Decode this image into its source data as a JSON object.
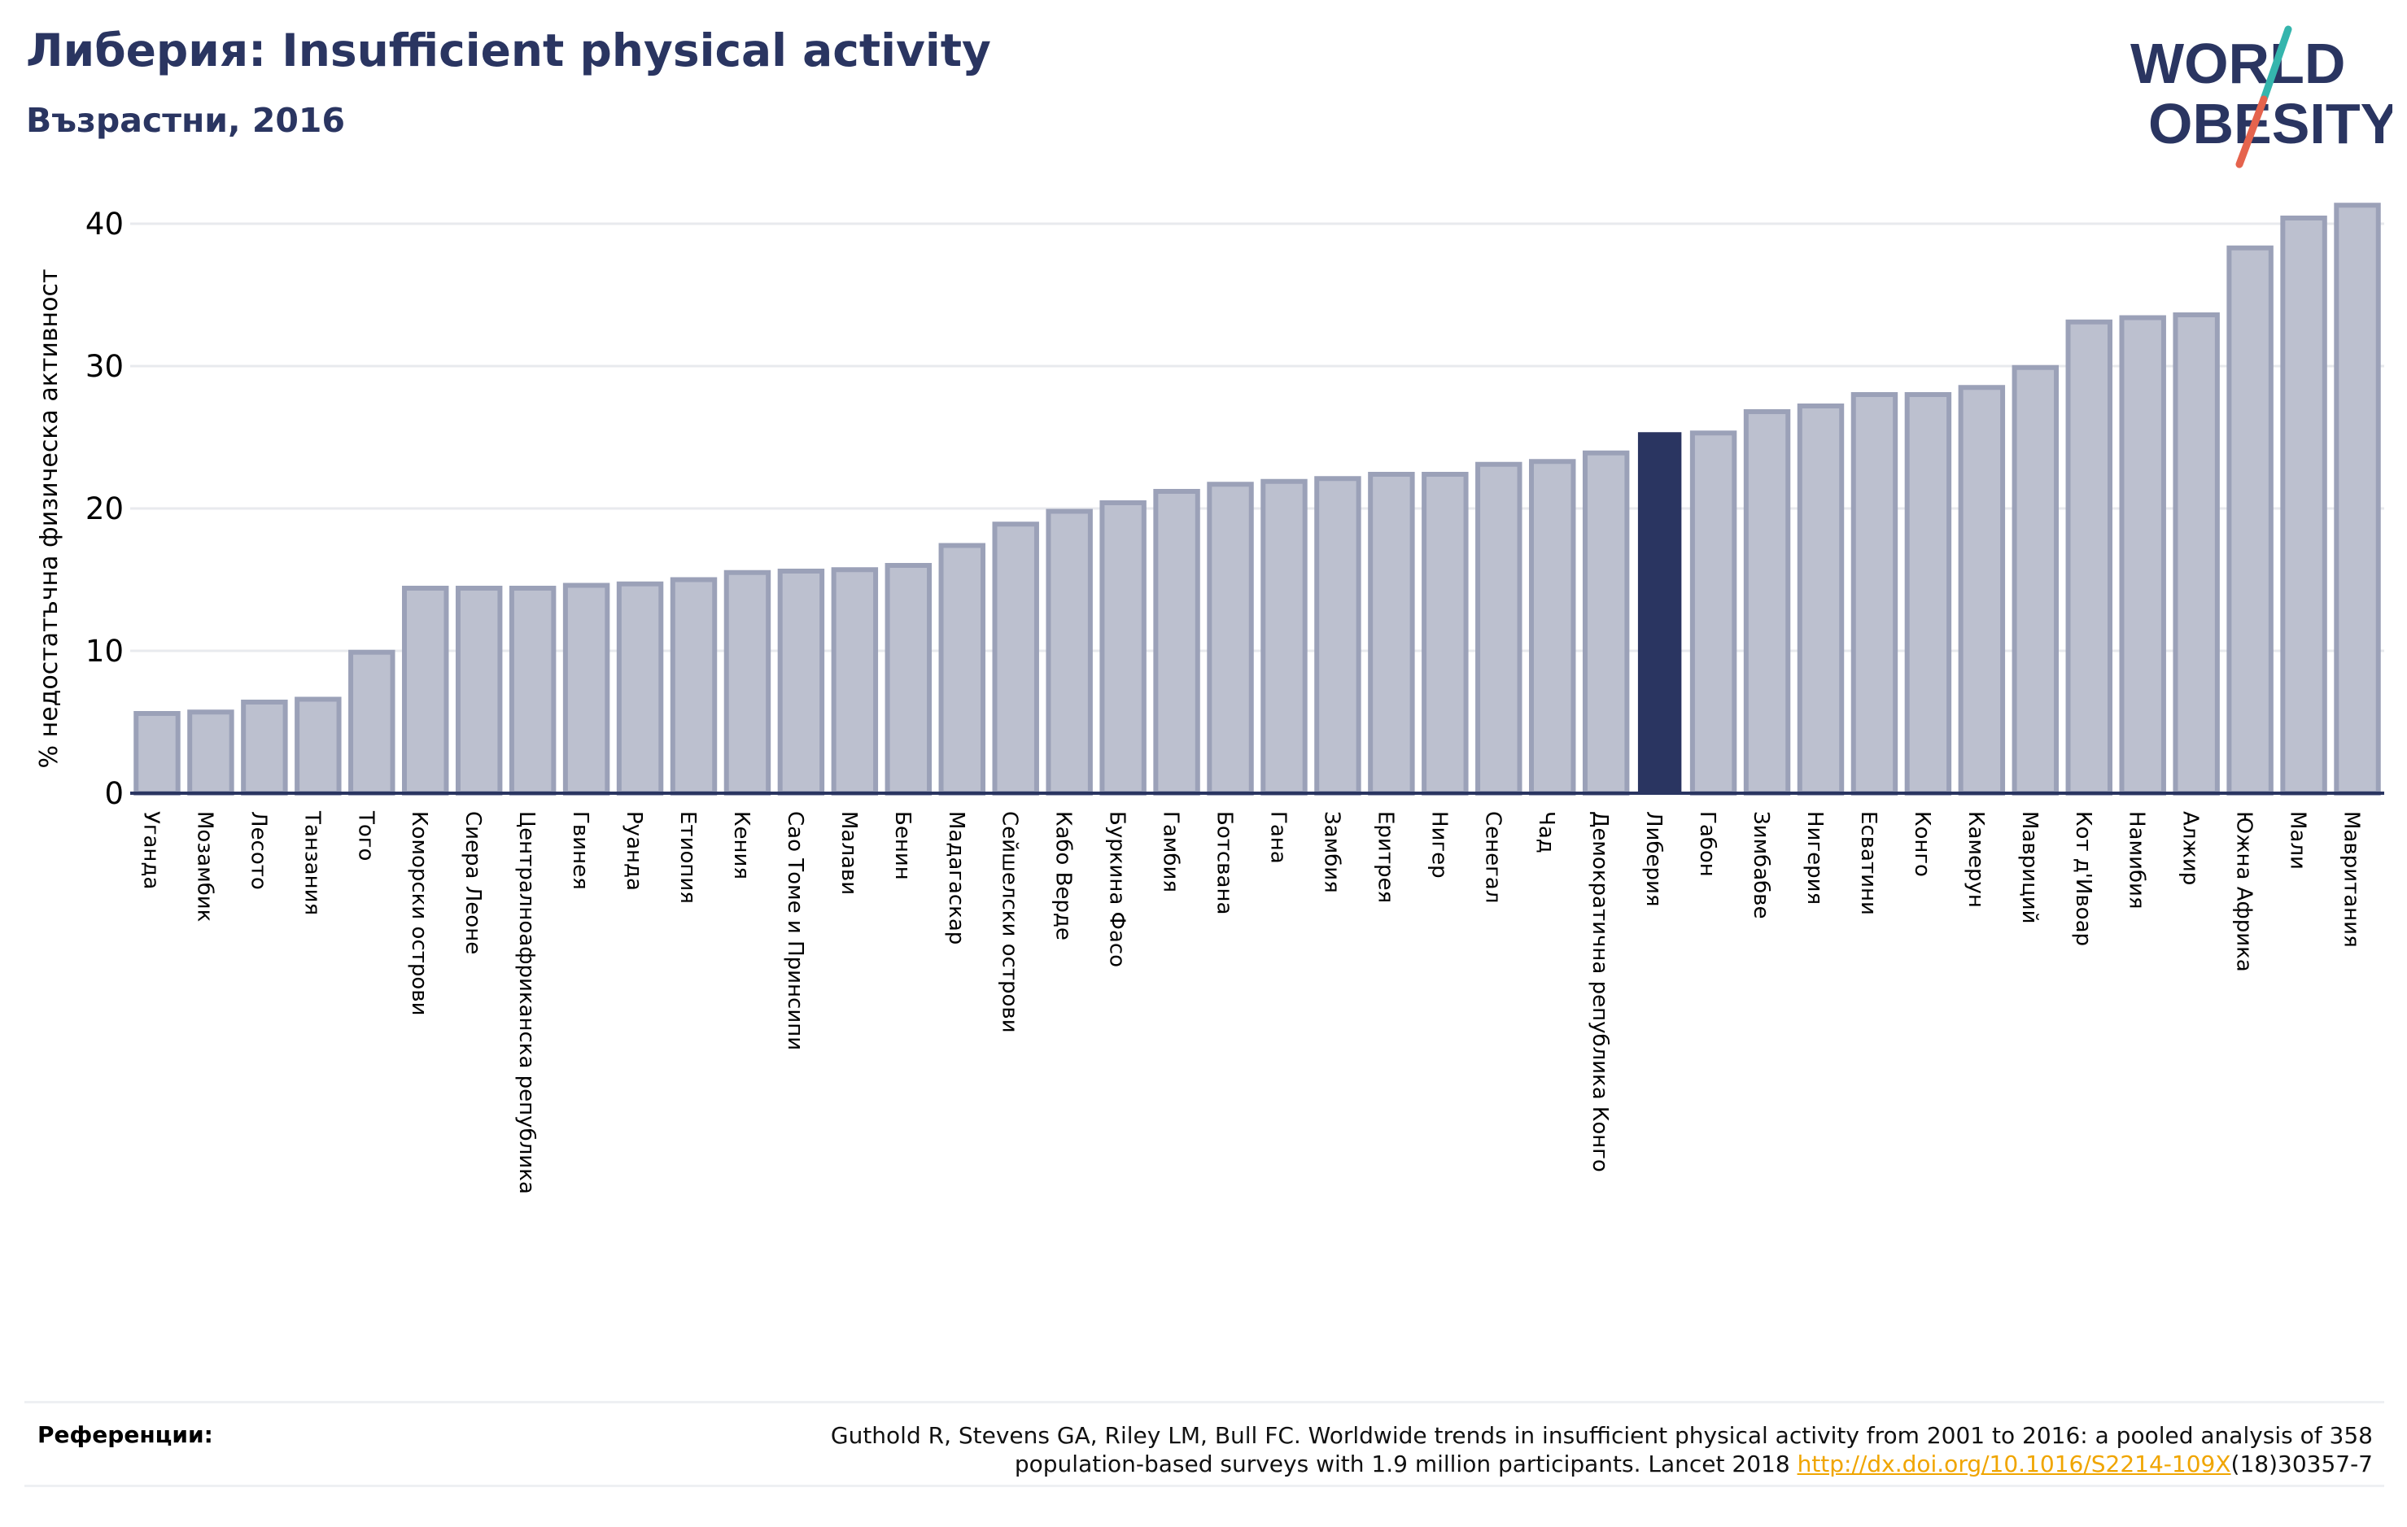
{
  "header": {
    "title": "Либерия: Insufficient physical activity",
    "subtitle": "Възрастни, 2016"
  },
  "logo": {
    "line1": "WORLD",
    "line2": "OBESITY",
    "colors": {
      "text": "#2a3561",
      "slash_top": "#35b5ad",
      "slash_bottom": "#e5634d"
    }
  },
  "chart_data": {
    "type": "bar",
    "title": "",
    "xlabel": "",
    "ylabel": "% недостатъчна физическа активност",
    "ylim": [
      0,
      42
    ],
    "yticks": [
      0,
      10,
      20,
      30,
      40
    ],
    "grid": true,
    "highlight": "Либерия",
    "colors": {
      "bar": "#bcc0cf",
      "bar_edge": "#9ba1b8",
      "highlight": "#2a3561",
      "grid": "#e8eaee",
      "axis": "#2a3561"
    },
    "categories": [
      "Уганда",
      "Мозамбик",
      "Лесото",
      "Танзания",
      "Того",
      "Коморски острови",
      "Сиера Леоне",
      "Централноафриканска република",
      "Гвинея",
      "Руанда",
      "Етиопия",
      "Кения",
      "Сао Томе и Принсипи",
      "Малави",
      "Бенин",
      "Мадагаскар",
      "Сейшелски острови",
      "Кабо Верде",
      "Буркина Фасо",
      "Гамбия",
      "Ботсвана",
      "Гана",
      "Замбия",
      "Еритрея",
      "Нигер",
      "Сенегал",
      "Чад",
      "Демократична република Конго",
      "Либерия",
      "Габон",
      "Зимбабве",
      "Нигерия",
      "Есватини",
      "Конго",
      "Камерун",
      "Мавриций",
      "Кот д'Ивоар",
      "Намибия",
      "Алжир",
      "Южна Африка",
      "Мали",
      "Мавритания"
    ],
    "values": [
      5.6,
      5.7,
      6.4,
      6.6,
      9.9,
      14.4,
      14.4,
      14.4,
      14.6,
      14.7,
      15.0,
      15.5,
      15.6,
      15.7,
      16.0,
      17.4,
      18.9,
      19.8,
      20.4,
      21.2,
      21.7,
      21.9,
      22.1,
      22.4,
      22.4,
      23.1,
      23.3,
      23.9,
      25.3,
      25.3,
      26.8,
      27.2,
      28.0,
      28.0,
      28.5,
      29.9,
      33.1,
      33.4,
      33.6,
      38.3,
      40.4,
      41.3
    ]
  },
  "references": {
    "label": "Референции:",
    "text_line1": "Guthold R, Stevens GA, Riley LM, Bull FC. Worldwide trends in insufficient physical activity from 2001 to 2016: a pooled analysis of 358",
    "text_line2_before": "population-based surveys with 1.9 million participants. Lancet 2018 ",
    "link": "http://dx.doi.org/10.1016/S2214-109X",
    "text_line2_after": "(18)30357-7"
  }
}
